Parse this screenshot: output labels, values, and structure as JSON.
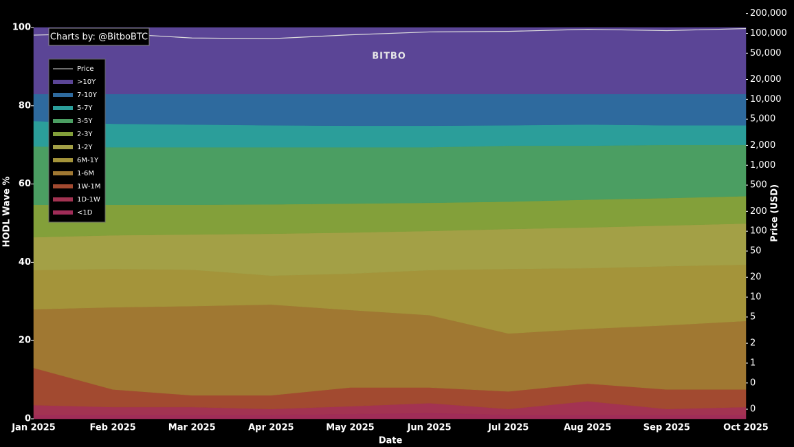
{
  "chart_data": {
    "type": "stacked-area",
    "credit": "Charts by: @BitboBTC",
    "watermark": "BITBO",
    "xlabel": "Date",
    "ylabel": "HODL Wave %",
    "y2label": "Price (USD)",
    "categories": [
      "Jan 2025",
      "Feb 2025",
      "Mar 2025",
      "Apr 2025",
      "May 2025",
      "Jun 2025",
      "Jul 2025",
      "Aug 2025",
      "Sep 2025",
      "Oct 2025"
    ],
    "ylim": [
      0,
      100
    ],
    "yticks": [
      0,
      20,
      40,
      60,
      80,
      100
    ],
    "y2lim": [
      0.143,
      240000
    ],
    "y2log": true,
    "y2ticks": [
      {
        "value": 0.2,
        "label": "0"
      },
      {
        "value": 0.5,
        "label": "0"
      },
      1,
      2,
      5,
      10,
      20,
      50,
      100,
      200,
      500,
      {
        "value": 1000,
        "label": "1,000"
      },
      {
        "value": 2000,
        "label": "2,000"
      },
      {
        "value": 5000,
        "label": "5,000"
      },
      {
        "value": 10000,
        "label": "10,000"
      },
      {
        "value": 20000,
        "label": "20,000"
      },
      {
        "value": 50000,
        "label": "50,000"
      },
      {
        "value": 100000,
        "label": "100,000"
      },
      {
        "value": 200000,
        "label": "200,000"
      }
    ],
    "series": [
      {
        "name": "<1D",
        "color": "#a02c58",
        "values": [
          1,
          1,
          1,
          1,
          1.2,
          1.5,
          1,
          1,
          1,
          1
        ]
      },
      {
        "name": "1D-1W",
        "color": "#a33352",
        "values": [
          2.5,
          2,
          2,
          1.5,
          2,
          2.5,
          1.5,
          3.5,
          1.5,
          2
        ]
      },
      {
        "name": "1W-1M",
        "color": "#a24a30",
        "values": [
          9.5,
          4.5,
          3,
          3.5,
          4.8,
          4,
          4.5,
          4.5,
          5,
          4.5
        ]
      },
      {
        "name": "1-6M",
        "color": "#a07832",
        "values": [
          15,
          21,
          22.8,
          23.2,
          19.8,
          18.5,
          14.8,
          14,
          16.4,
          17.5
        ]
      },
      {
        "name": "6M-1Y",
        "color": "#a4943a",
        "values": [
          10,
          9.8,
          9.3,
          7.4,
          9.3,
          11.5,
          16.5,
          15.5,
          15.1,
          14.4
        ]
      },
      {
        "name": "1-2Y",
        "color": "#a3a046",
        "values": [
          8.4,
          8.6,
          9,
          10.7,
          10.5,
          10,
          10.2,
          10.4,
          10.4,
          10.5
        ]
      },
      {
        "name": "2-3Y",
        "color": "#83a03a",
        "values": [
          8.3,
          7.8,
          7.6,
          7.5,
          7.4,
          7.2,
          7,
          7.1,
          7,
          7
        ]
      },
      {
        "name": "3-5Y",
        "color": "#4b9e62",
        "values": [
          14.9,
          14.7,
          14.7,
          14.6,
          14.4,
          14.2,
          14.3,
          13.8,
          13.6,
          13.1
        ]
      },
      {
        "name": "5-7Y",
        "color": "#2b9e9a",
        "values": [
          6.5,
          6,
          5.8,
          5.6,
          5.5,
          5.5,
          5.2,
          5.4,
          5,
          5
        ]
      },
      {
        "name": "7-10Y",
        "color": "#2e6a9e",
        "values": [
          6.9,
          7.6,
          7.8,
          8,
          8.1,
          8.1,
          8,
          7.8,
          8,
          8
        ]
      },
      {
        "name": ">10Y",
        "color": "#5b4596",
        "values": [
          17,
          17,
          17,
          17,
          17,
          17,
          17,
          17,
          17,
          17
        ]
      },
      {
        "name": "Price",
        "color": "#dddddd",
        "axis": "y2",
        "values": [
          94000,
          100000,
          85000,
          83000,
          95000,
          105000,
          107000,
          115000,
          110000,
          118000
        ]
      }
    ]
  }
}
